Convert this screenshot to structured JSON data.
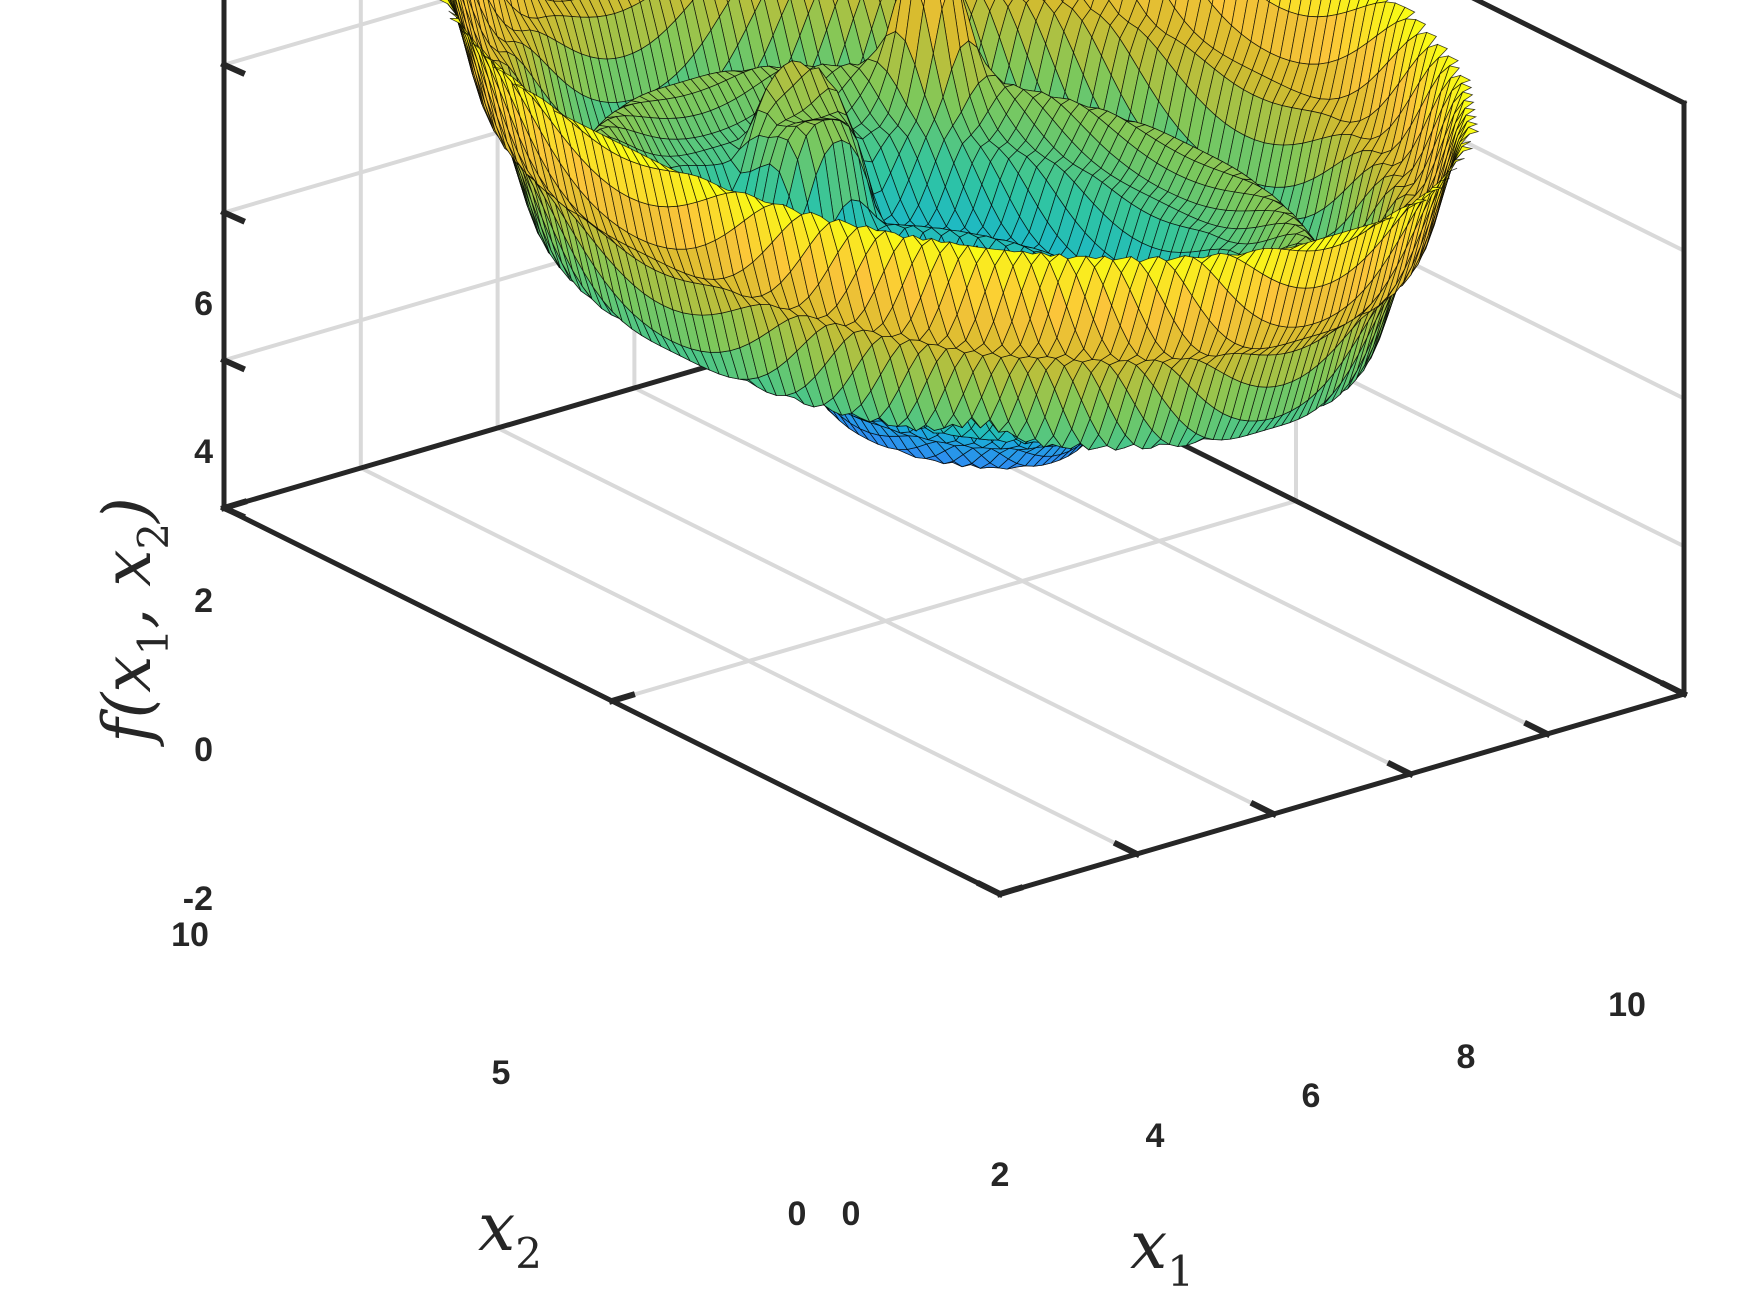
{
  "chart_data": {
    "type": "surface",
    "title": "",
    "xlabel": {
      "base": "x",
      "sub": "1"
    },
    "ylabel": {
      "base": "x",
      "sub": "2"
    },
    "zlabel": {
      "prefix": "f(",
      "v1": "x",
      "s1": "1",
      "sep": ", ",
      "v2": "x",
      "s2": "2",
      "suffix": ")"
    },
    "xlim": [
      0,
      10
    ],
    "ylim": [
      0,
      10
    ],
    "zlim": [
      -2,
      6
    ],
    "x_ticks": [
      "0",
      "2",
      "4",
      "6",
      "8",
      "10"
    ],
    "y_ticks": [
      "0",
      "5",
      "10"
    ],
    "z_ticks": [
      "-2",
      "0",
      "2",
      "4",
      "6"
    ],
    "grid": true,
    "box": true,
    "colormap": "parula",
    "grid_resolution": 80,
    "surface": {
      "center": [
        5,
        5
      ],
      "domain": "disk, radius 5",
      "radial_profile_r": [
        0,
        0.3,
        0.6,
        0.9,
        1.2,
        1.6,
        2.0,
        2.5,
        3.0,
        3.5,
        4.0,
        4.5,
        5.0
      ],
      "radial_profile_f": [
        1.8,
        1.7,
        1.2,
        0.6,
        0.5,
        1.0,
        1.9,
        1.6,
        2.6,
        3.2,
        2.4,
        3.9,
        5.6
      ],
      "features": [
        {
          "kind": "peak",
          "x": 2.5,
          "y": 2.5,
          "height": 1.6
        },
        {
          "kind": "peak",
          "x": 7.5,
          "y": 7.5,
          "height": 2.4
        },
        {
          "kind": "plateau",
          "x": 5.6,
          "y": 7.4,
          "height": 1.5
        }
      ]
    }
  },
  "colors": {
    "axis": "#262626",
    "grid": "#d9d9d9",
    "edge": "#000000",
    "colormap_stops": [
      "#3e26a8",
      "#4744e0",
      "#2d8ef1",
      "#16b4d2",
      "#31c5a0",
      "#7fc85a",
      "#d4bb2e",
      "#fbc53a",
      "#f9fb15"
    ]
  }
}
